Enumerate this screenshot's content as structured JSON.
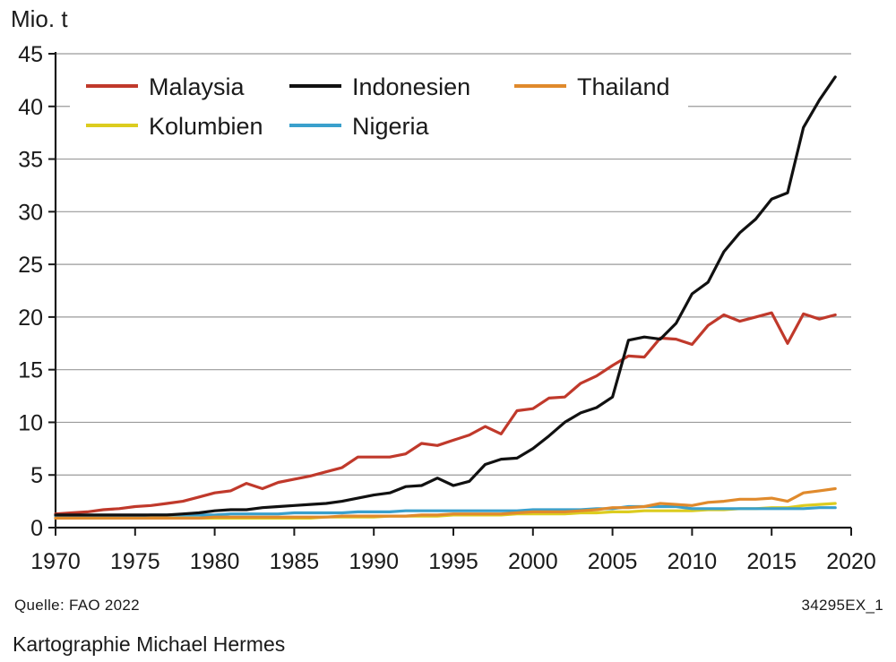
{
  "chart_data": {
    "type": "line",
    "unit_label": "Mio. t",
    "title": "",
    "xlabel": "",
    "ylabel": "Mio. t",
    "xlim": [
      1970,
      2020
    ],
    "ylim": [
      0,
      45
    ],
    "x_ticks": [
      1970,
      1975,
      1980,
      1985,
      1990,
      1995,
      2000,
      2005,
      2010,
      2015,
      2020
    ],
    "y_ticks": [
      0,
      5,
      10,
      15,
      20,
      25,
      30,
      35,
      40,
      45
    ],
    "grid": "horizontal",
    "legend_position": "top-left",
    "x": [
      1970,
      1971,
      1972,
      1973,
      1974,
      1975,
      1976,
      1977,
      1978,
      1979,
      1980,
      1981,
      1982,
      1983,
      1984,
      1985,
      1986,
      1987,
      1988,
      1989,
      1990,
      1991,
      1992,
      1993,
      1994,
      1995,
      1996,
      1997,
      1998,
      1999,
      2000,
      2001,
      2002,
      2003,
      2004,
      2005,
      2006,
      2007,
      2008,
      2009,
      2010,
      2011,
      2012,
      2013,
      2014,
      2015,
      2016,
      2017,
      2018,
      2019
    ],
    "series": [
      {
        "name": "Malaysia",
        "color": "#c0392b",
        "values": [
          1.3,
          1.4,
          1.5,
          1.7,
          1.8,
          2.0,
          2.1,
          2.3,
          2.5,
          2.9,
          3.3,
          3.5,
          4.2,
          3.7,
          4.3,
          4.6,
          4.9,
          5.3,
          5.7,
          6.7,
          6.7,
          6.7,
          7.0,
          8.0,
          7.8,
          8.3,
          8.8,
          9.6,
          8.9,
          11.1,
          11.3,
          12.3,
          12.4,
          13.7,
          14.4,
          15.4,
          16.3,
          16.2,
          18.0,
          17.9,
          17.4,
          19.2,
          20.2,
          19.6,
          20.0,
          20.4,
          17.5,
          20.3,
          19.8,
          20.2
        ]
      },
      {
        "name": "Indonesien",
        "color": "#111111",
        "values": [
          1.2,
          1.2,
          1.2,
          1.2,
          1.2,
          1.2,
          1.2,
          1.2,
          1.3,
          1.4,
          1.6,
          1.7,
          1.7,
          1.9,
          2.0,
          2.1,
          2.2,
          2.3,
          2.5,
          2.8,
          3.1,
          3.3,
          3.9,
          4.0,
          4.7,
          4.0,
          4.4,
          6.0,
          6.5,
          6.6,
          7.5,
          8.7,
          10.0,
          10.9,
          11.4,
          12.4,
          17.8,
          18.1,
          17.9,
          19.4,
          22.2,
          23.3,
          26.2,
          28.0,
          29.3,
          31.2,
          31.8,
          38.0,
          40.6,
          42.8
        ]
      },
      {
        "name": "Thailand",
        "color": "#e08a2c",
        "values": [
          0.9,
          0.9,
          0.9,
          0.9,
          0.9,
          0.9,
          0.9,
          0.9,
          0.9,
          0.9,
          1.0,
          1.0,
          1.0,
          1.0,
          1.0,
          1.0,
          1.0,
          1.0,
          1.1,
          1.1,
          1.1,
          1.1,
          1.1,
          1.2,
          1.2,
          1.3,
          1.3,
          1.3,
          1.3,
          1.4,
          1.5,
          1.5,
          1.5,
          1.6,
          1.7,
          1.9,
          1.9,
          2.0,
          2.3,
          2.2,
          2.1,
          2.4,
          2.5,
          2.7,
          2.7,
          2.8,
          2.5,
          3.3,
          3.5,
          3.7
        ]
      },
      {
        "name": "Kolumbien",
        "color": "#dccc1f",
        "values": [
          0.9,
          0.9,
          0.9,
          0.9,
          0.9,
          0.9,
          0.9,
          0.9,
          0.9,
          0.9,
          0.9,
          0.9,
          0.9,
          0.9,
          0.9,
          0.9,
          0.9,
          1.0,
          1.0,
          1.0,
          1.0,
          1.1,
          1.1,
          1.1,
          1.1,
          1.2,
          1.2,
          1.2,
          1.2,
          1.3,
          1.3,
          1.3,
          1.3,
          1.4,
          1.4,
          1.5,
          1.5,
          1.6,
          1.6,
          1.6,
          1.6,
          1.7,
          1.7,
          1.8,
          1.8,
          1.9,
          1.9,
          2.1,
          2.2,
          2.3
        ]
      },
      {
        "name": "Nigeria",
        "color": "#3aa0cc",
        "values": [
          1.1,
          1.1,
          1.1,
          1.1,
          1.1,
          1.1,
          1.2,
          1.2,
          1.2,
          1.2,
          1.2,
          1.3,
          1.3,
          1.3,
          1.3,
          1.4,
          1.4,
          1.4,
          1.4,
          1.5,
          1.5,
          1.5,
          1.6,
          1.6,
          1.6,
          1.6,
          1.6,
          1.6,
          1.6,
          1.6,
          1.7,
          1.7,
          1.7,
          1.7,
          1.8,
          1.8,
          2.0,
          2.0,
          2.0,
          2.0,
          1.8,
          1.8,
          1.8,
          1.8,
          1.8,
          1.8,
          1.8,
          1.8,
          1.9,
          1.9
        ]
      }
    ]
  },
  "footer": {
    "source": "Quelle: FAO 2022",
    "code": "34295EX_1",
    "credit": "Kartographie Michael Hermes"
  }
}
